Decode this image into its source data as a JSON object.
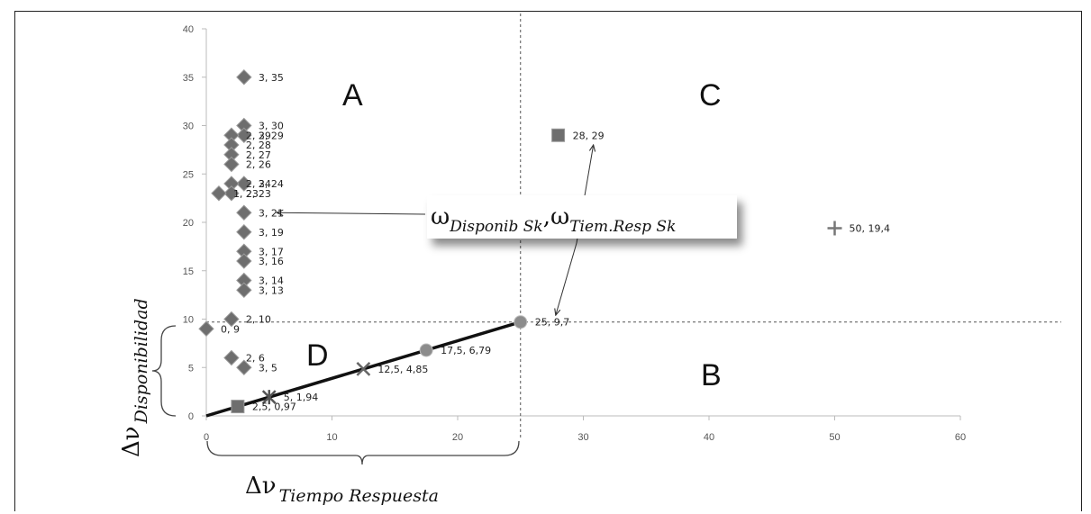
{
  "chart_data": {
    "type": "scatter",
    "xlim": [
      0,
      60
    ],
    "ylim": [
      0,
      40
    ],
    "x_ticks": [
      "0",
      "10",
      "20",
      "30",
      "40",
      "50",
      "60"
    ],
    "y_ticks": [
      "0",
      "5",
      "10",
      "15",
      "20",
      "25",
      "30",
      "35",
      "40"
    ],
    "xlabel": {
      "symbol": "Δν",
      "sub": "Tiempo Respuesta"
    },
    "ylabel": {
      "symbol": "Δν",
      "sub": "Disponibilidad"
    },
    "reference_lines": {
      "x": 25,
      "y": 9.7
    },
    "quadrants": {
      "A": "A",
      "B": "B",
      "C": "C",
      "D": "D"
    },
    "annotation": {
      "omega1": "ω",
      "sub1": "Disponib  Sk",
      "comma": ",",
      "omega2": "ω",
      "sub2": "Tiem.Resp  Sk"
    },
    "diagonal_line": {
      "from": [
        0,
        0
      ],
      "to": [
        25,
        9.7
      ]
    },
    "series": [
      {
        "marker": "diamond",
        "points": [
          {
            "x": 3,
            "y": 35,
            "label": "3, 35"
          },
          {
            "x": 3,
            "y": 30,
            "label": "3, 30"
          },
          {
            "x": 3,
            "y": 29,
            "label": "3, 29"
          },
          {
            "x": 2,
            "y": 29,
            "label": "2, 29"
          },
          {
            "x": 2,
            "y": 28,
            "label": "2, 28"
          },
          {
            "x": 2,
            "y": 27,
            "label": "2, 27"
          },
          {
            "x": 2,
            "y": 26,
            "label": "2, 26"
          },
          {
            "x": 3,
            "y": 24,
            "label": "3, 24"
          },
          {
            "x": 2,
            "y": 24,
            "label": "2, 24"
          },
          {
            "x": 2,
            "y": 23,
            "label": "2, 23"
          },
          {
            "x": 1,
            "y": 23,
            "label": "1, 23"
          },
          {
            "x": 3,
            "y": 21,
            "label": "3, 21"
          },
          {
            "x": 3,
            "y": 19,
            "label": "3, 19"
          },
          {
            "x": 3,
            "y": 17,
            "label": "3, 17"
          },
          {
            "x": 3,
            "y": 16,
            "label": "3, 16"
          },
          {
            "x": 3,
            "y": 14,
            "label": "3, 14"
          },
          {
            "x": 3,
            "y": 13,
            "label": "3, 13"
          },
          {
            "x": 2,
            "y": 10,
            "label": "2, 10"
          },
          {
            "x": 0,
            "y": 9,
            "label": "0, 9"
          },
          {
            "x": 2,
            "y": 6,
            "label": "2, 6"
          },
          {
            "x": 3,
            "y": 5,
            "label": "3, 5"
          }
        ]
      },
      {
        "marker": "square",
        "points": [
          {
            "x": 28,
            "y": 29,
            "label": "28, 29"
          },
          {
            "x": 2.5,
            "y": 0.97,
            "label": "2,5, 0,97"
          }
        ]
      },
      {
        "marker": "circle",
        "points": [
          {
            "x": 25,
            "y": 9.7,
            "label": "25, 9,7"
          },
          {
            "x": 17.5,
            "y": 6.79,
            "label": "17,5, 6,79"
          }
        ]
      },
      {
        "marker": "x",
        "points": [
          {
            "x": 12.5,
            "y": 4.85,
            "label": "12,5, 4,85"
          }
        ]
      },
      {
        "marker": "star",
        "points": [
          {
            "x": 5,
            "y": 1.94,
            "label": "5, 1,94"
          }
        ]
      },
      {
        "marker": "plus",
        "points": [
          {
            "x": 50,
            "y": 19.4,
            "label": "50, 19,4"
          }
        ]
      }
    ]
  }
}
